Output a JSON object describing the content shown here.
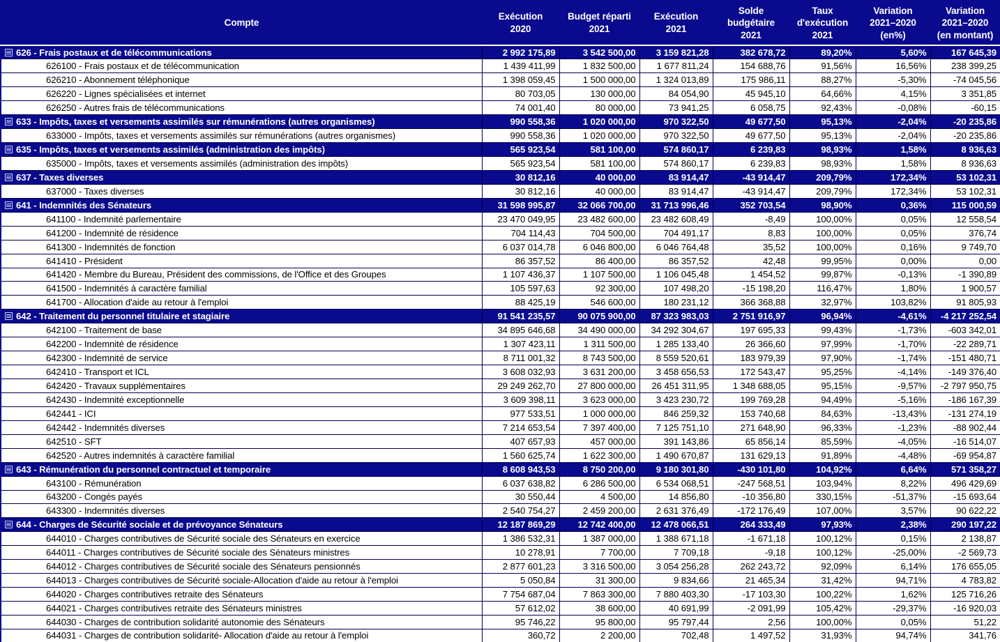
{
  "colors": {
    "navy": "#0A0A8E",
    "grid": "#00004D",
    "header_separator": "#FFFFFF",
    "detail_text": "#000000",
    "header_text": "#FFFFFF"
  },
  "table": {
    "header": {
      "compte": "Compte",
      "keys": [
        "execution-2020",
        "budget-reparti-2021",
        "execution-2021",
        "solde-budgetaire-2021",
        "taux-execution-2021",
        "variation-2021-2020-pct",
        "variation-2021-2020-montant"
      ],
      "columns": [
        [
          "Exécution",
          "2020"
        ],
        [
          "Budget réparti",
          "2021"
        ],
        [
          "Exécution",
          "2021"
        ],
        [
          "Solde",
          "budgétaire",
          "2021"
        ],
        [
          "Taux",
          "d'exécution",
          "2021"
        ],
        [
          "Variation",
          "2021–2020",
          "(en%)"
        ],
        [
          "Variation",
          "2021–2020",
          "(en montant)"
        ]
      ]
    },
    "rows": [
      {
        "type": "group",
        "label": "626 - Frais postaux et de télécommunications",
        "values": [
          "2 992 175,89",
          "3 542 500,00",
          "3 159 821,28",
          "382 678,72",
          "89,20%",
          "5,60%",
          "167 645,39"
        ]
      },
      {
        "type": "detail",
        "label": "626100 - Frais postaux et de télécommunication",
        "values": [
          "1 439 411,99",
          "1 832 500,00",
          "1 677 811,24",
          "154 688,76",
          "91,56%",
          "16,56%",
          "238 399,25"
        ]
      },
      {
        "type": "detail",
        "label": "626210 - Abonnement téléphonique",
        "values": [
          "1 398 059,45",
          "1 500 000,00",
          "1 324 013,89",
          "175 986,11",
          "88,27%",
          "-5,30%",
          "-74 045,56"
        ]
      },
      {
        "type": "detail",
        "label": "626220 - Lignes spécialisées et internet",
        "values": [
          "80 703,05",
          "130 000,00",
          "84 054,90",
          "45 945,10",
          "64,66%",
          "4,15%",
          "3 351,85"
        ]
      },
      {
        "type": "detail",
        "label": "626250 - Autres frais de télécommunications",
        "values": [
          "74 001,40",
          "80 000,00",
          "73 941,25",
          "6 058,75",
          "92,43%",
          "-0,08%",
          "-60,15"
        ]
      },
      {
        "type": "group",
        "label": "633 - Impôts, taxes et versements assimilés sur rémunérations (autres organismes)",
        "values": [
          "990 558,36",
          "1 020 000,00",
          "970 322,50",
          "49 677,50",
          "95,13%",
          "-2,04%",
          "-20 235,86"
        ]
      },
      {
        "type": "detail",
        "label": "633000 - Impôts, taxes et versements assimilés sur rémunérations (autres organismes)",
        "values": [
          "990 558,36",
          "1 020 000,00",
          "970 322,50",
          "49 677,50",
          "95,13%",
          "-2,04%",
          "-20 235,86"
        ]
      },
      {
        "type": "group",
        "label": "635 - Impôts, taxes et versements assimilés (administration des impôts)",
        "values": [
          "565 923,54",
          "581 100,00",
          "574 860,17",
          "6 239,83",
          "98,93%",
          "1,58%",
          "8 936,63"
        ]
      },
      {
        "type": "detail",
        "label": "635000 - Impôts, taxes et versements assimilés (administration des impôts)",
        "values": [
          "565 923,54",
          "581 100,00",
          "574 860,17",
          "6 239,83",
          "98,93%",
          "1,58%",
          "8 936,63"
        ]
      },
      {
        "type": "group",
        "label": "637 - Taxes diverses",
        "values": [
          "30 812,16",
          "40 000,00",
          "83 914,47",
          "-43 914,47",
          "209,79%",
          "172,34%",
          "53 102,31"
        ]
      },
      {
        "type": "detail",
        "label": "637000 - Taxes diverses",
        "values": [
          "30 812,16",
          "40 000,00",
          "83 914,47",
          "-43 914,47",
          "209,79%",
          "172,34%",
          "53 102,31"
        ]
      },
      {
        "type": "group",
        "label": "641 - Indemnités des Sénateurs",
        "values": [
          "31 598 995,87",
          "32 066 700,00",
          "31 713 996,46",
          "352 703,54",
          "98,90%",
          "0,36%",
          "115 000,59"
        ]
      },
      {
        "type": "detail",
        "label": "641100 - Indemnité parlementaire",
        "values": [
          "23 470 049,95",
          "23 482 600,00",
          "23 482 608,49",
          "-8,49",
          "100,00%",
          "0,05%",
          "12 558,54"
        ]
      },
      {
        "type": "detail",
        "label": "641200 - Indemnité de résidence",
        "values": [
          "704 114,43",
          "704 500,00",
          "704 491,17",
          "8,83",
          "100,00%",
          "0,05%",
          "376,74"
        ]
      },
      {
        "type": "detail",
        "label": "641300 - Indemnités de fonction",
        "values": [
          "6 037 014,78",
          "6 046 800,00",
          "6 046 764,48",
          "35,52",
          "100,00%",
          "0,16%",
          "9 749,70"
        ]
      },
      {
        "type": "detail",
        "label": "641410 - Président",
        "values": [
          "86 357,52",
          "86 400,00",
          "86 357,52",
          "42,48",
          "99,95%",
          "0,00%",
          "0,00"
        ]
      },
      {
        "type": "detail",
        "label": "641420 - Membre du Bureau, Président des commissions, de l'Office et des Groupes",
        "values": [
          "1 107 436,37",
          "1 107 500,00",
          "1 106 045,48",
          "1 454,52",
          "99,87%",
          "-0,13%",
          "-1 390,89"
        ]
      },
      {
        "type": "detail",
        "label": "641500 - Indemnités à caractère familial",
        "values": [
          "105 597,63",
          "92 300,00",
          "107 498,20",
          "-15 198,20",
          "116,47%",
          "1,80%",
          "1 900,57"
        ]
      },
      {
        "type": "detail",
        "label": "641700 - Allocation d'aide au retour à l'emploi",
        "values": [
          "88 425,19",
          "546 600,00",
          "180 231,12",
          "366 368,88",
          "32,97%",
          "103,82%",
          "91 805,93"
        ]
      },
      {
        "type": "group",
        "label": "642 - Traitement du personnel titulaire et stagiaire",
        "values": [
          "91 541 235,57",
          "90 075 900,00",
          "87 323 983,03",
          "2 751 916,97",
          "96,94%",
          "-4,61%",
          "-4 217 252,54"
        ]
      },
      {
        "type": "detail",
        "label": "642100 - Traitement de base",
        "values": [
          "34 895 646,68",
          "34 490 000,00",
          "34 292 304,67",
          "197 695,33",
          "99,43%",
          "-1,73%",
          "-603 342,01"
        ]
      },
      {
        "type": "detail",
        "label": "642200 - Indemnité de résidence",
        "values": [
          "1 307 423,11",
          "1 311 500,00",
          "1 285 133,40",
          "26 366,60",
          "97,99%",
          "-1,70%",
          "-22 289,71"
        ]
      },
      {
        "type": "detail",
        "label": "642300 - Indemnité de service",
        "values": [
          "8 711 001,32",
          "8 743 500,00",
          "8 559 520,61",
          "183 979,39",
          "97,90%",
          "-1,74%",
          "-151 480,71"
        ]
      },
      {
        "type": "detail",
        "label": "642410 - Transport et ICL",
        "values": [
          "3 608 032,93",
          "3 631 200,00",
          "3 458 656,53",
          "172 543,47",
          "95,25%",
          "-4,14%",
          "-149 376,40"
        ]
      },
      {
        "type": "detail",
        "label": "642420 - Travaux supplémentaires",
        "values": [
          "29 249 262,70",
          "27 800 000,00",
          "26 451 311,95",
          "1 348 688,05",
          "95,15%",
          "-9,57%",
          "-2 797 950,75"
        ]
      },
      {
        "type": "detail",
        "label": "642430 - Indemnité exceptionnelle",
        "values": [
          "3 609 398,11",
          "3 623 000,00",
          "3 423 230,72",
          "199 769,28",
          "94,49%",
          "-5,16%",
          "-186 167,39"
        ]
      },
      {
        "type": "detail",
        "label": "642441 - ICI",
        "values": [
          "977 533,51",
          "1 000 000,00",
          "846 259,32",
          "153 740,68",
          "84,63%",
          "-13,43%",
          "-131 274,19"
        ]
      },
      {
        "type": "detail",
        "label": "642442 - Indemnités diverses",
        "values": [
          "7 214 653,54",
          "7 397 400,00",
          "7 125 751,10",
          "271 648,90",
          "96,33%",
          "-1,23%",
          "-88 902,44"
        ]
      },
      {
        "type": "detail",
        "label": "642510 - SFT",
        "values": [
          "407 657,93",
          "457 000,00",
          "391 143,86",
          "65 856,14",
          "85,59%",
          "-4,05%",
          "-16 514,07"
        ]
      },
      {
        "type": "detail",
        "label": "642520 - Autres indemnités à caractère familial",
        "values": [
          "1 560 625,74",
          "1 622 300,00",
          "1 490 670,87",
          "131 629,13",
          "91,89%",
          "-4,48%",
          "-69 954,87"
        ]
      },
      {
        "type": "group",
        "label": "643 - Rémunération du personnel contractuel et temporaire",
        "values": [
          "8 608 943,53",
          "8 750 200,00",
          "9 180 301,80",
          "-430 101,80",
          "104,92%",
          "6,64%",
          "571 358,27"
        ]
      },
      {
        "type": "detail",
        "label": "643100 - Rémunération",
        "values": [
          "6 037 638,82",
          "6 286 500,00",
          "6 534 068,51",
          "-247 568,51",
          "103,94%",
          "8,22%",
          "496 429,69"
        ]
      },
      {
        "type": "detail",
        "label": "643200 - Congés payés",
        "values": [
          "30 550,44",
          "4 500,00",
          "14 856,80",
          "-10 356,80",
          "330,15%",
          "-51,37%",
          "-15 693,64"
        ]
      },
      {
        "type": "detail",
        "label": "643300 - Indemnités diverses",
        "values": [
          "2 540 754,27",
          "2 459 200,00",
          "2 631 376,49",
          "-172 176,49",
          "107,00%",
          "3,57%",
          "90 622,22"
        ]
      },
      {
        "type": "group",
        "label": "644 - Charges de Sécurité sociale et de prévoyance Sénateurs",
        "values": [
          "12 187 869,29",
          "12 742 400,00",
          "12 478 066,51",
          "264 333,49",
          "97,93%",
          "2,38%",
          "290 197,22"
        ]
      },
      {
        "type": "detail",
        "label": "644010 - Charges contributives de Sécurité sociale des Sénateurs en exercice",
        "values": [
          "1 386 532,31",
          "1 387 000,00",
          "1 388 671,18",
          "-1 671,18",
          "100,12%",
          "0,15%",
          "2 138,87"
        ]
      },
      {
        "type": "detail",
        "label": "644011 - Charges contributives de Sécurité sociale des Sénateurs ministres",
        "values": [
          "10 278,91",
          "7 700,00",
          "7 709,18",
          "-9,18",
          "100,12%",
          "-25,00%",
          "-2 569,73"
        ]
      },
      {
        "type": "detail",
        "label": "644012 - Charges contributives de Sécurité sociale des Sénateurs pensionnés",
        "values": [
          "2 877 601,23",
          "3 316 500,00",
          "3 054 256,28",
          "262 243,72",
          "92,09%",
          "6,14%",
          "176 655,05"
        ]
      },
      {
        "type": "detail",
        "label": "644013 - Charges contributives de Sécurité sociale-Allocation d'aide au retour à l'emploi",
        "values": [
          "5 050,84",
          "31 300,00",
          "9 834,66",
          "21 465,34",
          "31,42%",
          "94,71%",
          "4 783,82"
        ]
      },
      {
        "type": "detail",
        "label": "644020 - Charges contributives retraite des Sénateurs",
        "values": [
          "7 754 687,04",
          "7 863 300,00",
          "7 880 403,30",
          "-17 103,30",
          "100,22%",
          "1,62%",
          "125 716,26"
        ]
      },
      {
        "type": "detail",
        "label": "644021 - Charges contributives retraite des Sénateurs ministres",
        "values": [
          "57 612,02",
          "38 600,00",
          "40 691,99",
          "-2 091,99",
          "105,42%",
          "-29,37%",
          "-16 920,03"
        ]
      },
      {
        "type": "detail",
        "label": "644030 - Charges de contribution solidarité autonomie des Sénateurs",
        "values": [
          "95 746,22",
          "95 800,00",
          "95 797,44",
          "2,56",
          "100,00%",
          "0,05%",
          "51,22"
        ]
      },
      {
        "type": "detail",
        "label": "644031 - Charges de contribution solidarité- Allocation d'aide au retour à l'emploi",
        "values": [
          "360,72",
          "2 200,00",
          "702,48",
          "1 497,52",
          "31,93%",
          "94,74%",
          "341,76"
        ]
      }
    ]
  }
}
